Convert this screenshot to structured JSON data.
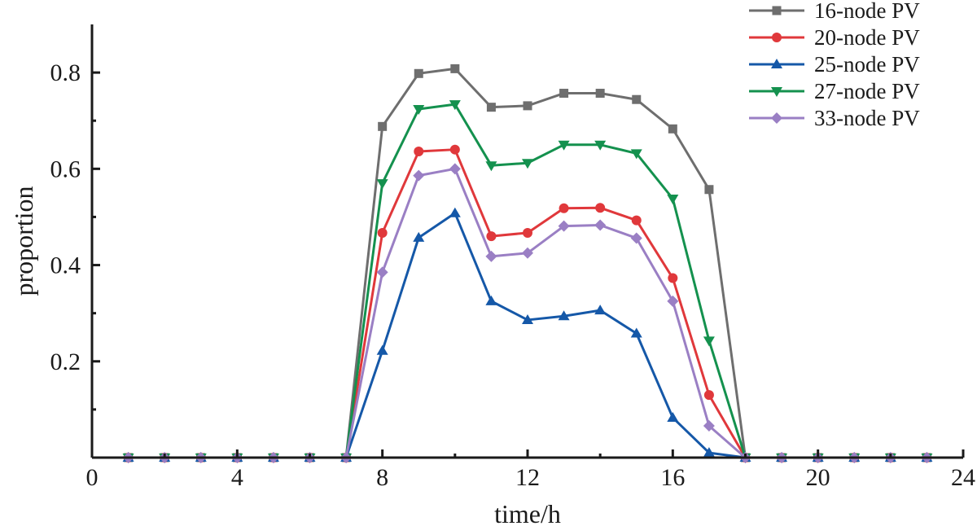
{
  "chart_data": {
    "type": "line",
    "xlabel": "time/h",
    "ylabel": "proportion",
    "xlim": [
      0,
      24
    ],
    "ylim": [
      0,
      0.9
    ],
    "xticks": [
      0,
      4,
      8,
      12,
      16,
      20,
      24
    ],
    "yticks": [
      0.2,
      0.4,
      0.6,
      0.8
    ],
    "xtick_labels": [
      "0",
      "4",
      "8",
      "12",
      "16",
      "20",
      "24"
    ],
    "ytick_labels": [
      "0.2",
      "0.4",
      "0.6",
      "0.8"
    ],
    "grid": false,
    "legend_position": "top-right",
    "x": [
      1,
      2,
      3,
      4,
      5,
      6,
      7,
      8,
      9,
      10,
      11,
      12,
      13,
      14,
      15,
      16,
      17,
      18,
      19,
      20,
      21,
      22,
      23,
      24
    ],
    "series": [
      {
        "name": "16-node PV",
        "color": "#6e6e6e",
        "marker": "square",
        "values": [
          0,
          0,
          0,
          0,
          0,
          0,
          0,
          0.688,
          0.798,
          0.808,
          0.728,
          0.731,
          0.757,
          0.757,
          0.744,
          0.683,
          0.557,
          0,
          0,
          0,
          0,
          0,
          0,
          0
        ]
      },
      {
        "name": "20-node PV",
        "color": "#e0383b",
        "marker": "circle",
        "values": [
          0,
          0,
          0,
          0,
          0,
          0,
          0,
          0.467,
          0.636,
          0.64,
          0.46,
          0.467,
          0.518,
          0.519,
          0.493,
          0.373,
          0.13,
          0,
          0,
          0,
          0,
          0,
          0,
          0
        ]
      },
      {
        "name": "25-node PV",
        "color": "#1558a8",
        "marker": "triangle-up",
        "values": [
          0,
          0,
          0,
          0,
          0,
          0,
          0,
          0.222,
          0.457,
          0.508,
          0.325,
          0.286,
          0.294,
          0.306,
          0.258,
          0.083,
          0.01,
          0,
          0,
          0,
          0,
          0,
          0,
          0
        ]
      },
      {
        "name": "27-node PV",
        "color": "#14914e",
        "marker": "triangle-down",
        "values": [
          0,
          0,
          0,
          0,
          0,
          0,
          0,
          0.57,
          0.724,
          0.734,
          0.607,
          0.612,
          0.65,
          0.65,
          0.632,
          0.538,
          0.243,
          0,
          0,
          0,
          0,
          0,
          0,
          0
        ]
      },
      {
        "name": "33-node PV",
        "color": "#9a7fc4",
        "marker": "diamond",
        "values": [
          0,
          0,
          0,
          0,
          0,
          0,
          0,
          0.385,
          0.586,
          0.6,
          0.418,
          0.425,
          0.481,
          0.483,
          0.456,
          0.325,
          0.066,
          0,
          0,
          0,
          0,
          0,
          0,
          0
        ]
      }
    ]
  }
}
